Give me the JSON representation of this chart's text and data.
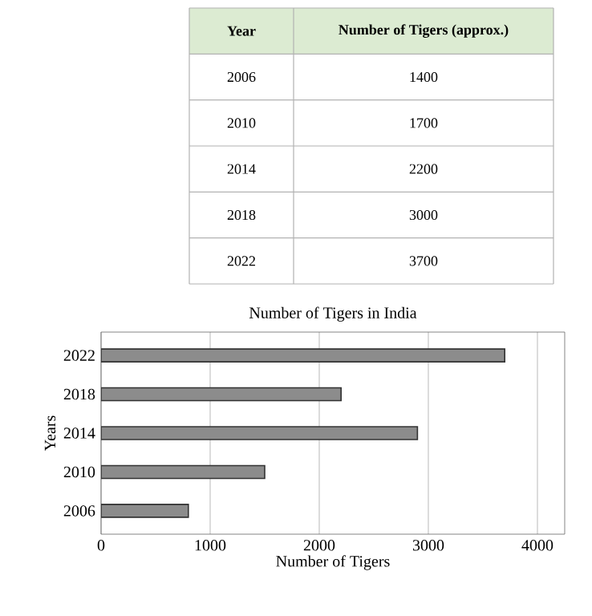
{
  "chart_data": {
    "type": "bar",
    "orientation": "horizontal",
    "title": "Number of Tigers in India",
    "xlabel": "Number of Tigers",
    "ylabel": "Years",
    "categories": [
      "2022",
      "2018",
      "2014",
      "2010",
      "2006"
    ],
    "values": [
      3700,
      2200,
      2900,
      1500,
      800
    ],
    "color": "#8c8c8c",
    "xlim": [
      0,
      4250
    ],
    "xticks": [
      0,
      1000,
      2000,
      3000,
      4000
    ],
    "grid": "x",
    "annotations": [
      "Year",
      "Number of Tigers (approx.)",
      "2006",
      "1400",
      "2010",
      "1700",
      "2014",
      "2200",
      "2018",
      "3000",
      "2022",
      "3700"
    ]
  }
}
